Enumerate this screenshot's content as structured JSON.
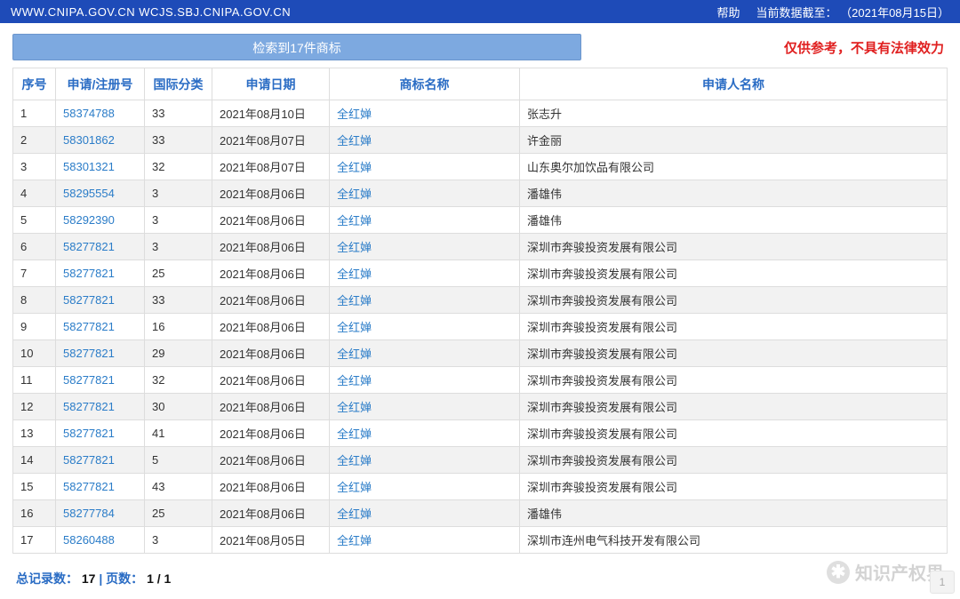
{
  "header": {
    "left": "WWW.CNIPA.GOV.CN WCJS.SBJ.CNIPA.GOV.CN",
    "help": "帮助",
    "data_as_of_label": "当前数据截至：",
    "data_as_of_value": "（2021年08月15日）"
  },
  "search_summary": "检索到17件商标",
  "disclaimer": "仅供参考，不具有法律效力",
  "columns": {
    "seq": "序号",
    "reg_no": "申请/注册号",
    "intl_class": "国际分类",
    "app_date": "申请日期",
    "tm_name": "商标名称",
    "applicant": "申请人名称"
  },
  "rows": [
    {
      "seq": "1",
      "reg_no": "58374788",
      "intl_class": "33",
      "app_date": "2021年08月10日",
      "tm_name": "全红婵",
      "applicant": "张志升"
    },
    {
      "seq": "2",
      "reg_no": "58301862",
      "intl_class": "33",
      "app_date": "2021年08月07日",
      "tm_name": "全红婵",
      "applicant": "许金丽"
    },
    {
      "seq": "3",
      "reg_no": "58301321",
      "intl_class": "32",
      "app_date": "2021年08月07日",
      "tm_name": "全红婵",
      "applicant": "山东奥尔加饮品有限公司"
    },
    {
      "seq": "4",
      "reg_no": "58295554",
      "intl_class": "3",
      "app_date": "2021年08月06日",
      "tm_name": "全红婵",
      "applicant": "潘雄伟"
    },
    {
      "seq": "5",
      "reg_no": "58292390",
      "intl_class": "3",
      "app_date": "2021年08月06日",
      "tm_name": "全红婵",
      "applicant": "潘雄伟"
    },
    {
      "seq": "6",
      "reg_no": "58277821",
      "intl_class": "3",
      "app_date": "2021年08月06日",
      "tm_name": "全红婵",
      "applicant": "深圳市奔骏投资发展有限公司"
    },
    {
      "seq": "7",
      "reg_no": "58277821",
      "intl_class": "25",
      "app_date": "2021年08月06日",
      "tm_name": "全红婵",
      "applicant": "深圳市奔骏投资发展有限公司"
    },
    {
      "seq": "8",
      "reg_no": "58277821",
      "intl_class": "33",
      "app_date": "2021年08月06日",
      "tm_name": "全红婵",
      "applicant": "深圳市奔骏投资发展有限公司"
    },
    {
      "seq": "9",
      "reg_no": "58277821",
      "intl_class": "16",
      "app_date": "2021年08月06日",
      "tm_name": "全红婵",
      "applicant": "深圳市奔骏投资发展有限公司"
    },
    {
      "seq": "10",
      "reg_no": "58277821",
      "intl_class": "29",
      "app_date": "2021年08月06日",
      "tm_name": "全红婵",
      "applicant": "深圳市奔骏投资发展有限公司"
    },
    {
      "seq": "11",
      "reg_no": "58277821",
      "intl_class": "32",
      "app_date": "2021年08月06日",
      "tm_name": "全红婵",
      "applicant": "深圳市奔骏投资发展有限公司"
    },
    {
      "seq": "12",
      "reg_no": "58277821",
      "intl_class": "30",
      "app_date": "2021年08月06日",
      "tm_name": "全红婵",
      "applicant": "深圳市奔骏投资发展有限公司"
    },
    {
      "seq": "13",
      "reg_no": "58277821",
      "intl_class": "41",
      "app_date": "2021年08月06日",
      "tm_name": "全红婵",
      "applicant": "深圳市奔骏投资发展有限公司"
    },
    {
      "seq": "14",
      "reg_no": "58277821",
      "intl_class": "5",
      "app_date": "2021年08月06日",
      "tm_name": "全红婵",
      "applicant": "深圳市奔骏投资发展有限公司"
    },
    {
      "seq": "15",
      "reg_no": "58277821",
      "intl_class": "43",
      "app_date": "2021年08月06日",
      "tm_name": "全红婵",
      "applicant": "深圳市奔骏投资发展有限公司"
    },
    {
      "seq": "16",
      "reg_no": "58277784",
      "intl_class": "25",
      "app_date": "2021年08月06日",
      "tm_name": "全红婵",
      "applicant": "潘雄伟"
    },
    {
      "seq": "17",
      "reg_no": "58260488",
      "intl_class": "3",
      "app_date": "2021年08月05日",
      "tm_name": "全红婵",
      "applicant": "深圳市连州电气科技开发有限公司"
    }
  ],
  "footer": {
    "total_label": "总记录数：",
    "total_value": "17",
    "sep": " | ",
    "page_label": "页数：",
    "page_value": "1 / 1"
  },
  "watermark": "知识产权界",
  "page_badge": "1",
  "colors": {
    "header_bg": "#1e4bb8",
    "link": "#2a7cc8",
    "th_text": "#2a6cc4",
    "border": "#dddddd",
    "row_alt": "#f2f2f2",
    "disclaimer": "#e02020",
    "search_box_bg": "#7da9e0"
  }
}
